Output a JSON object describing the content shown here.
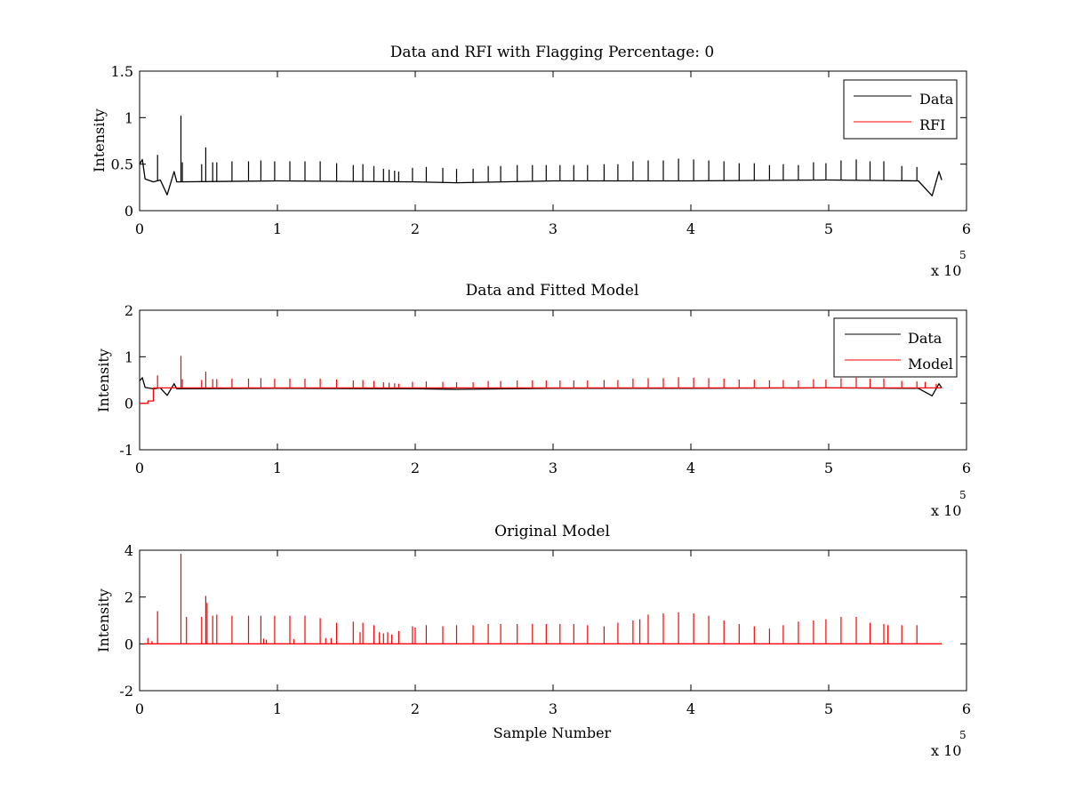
{
  "figure": {
    "background": "#ffffff",
    "x_scale_note": {
      "prefix": "x 10",
      "exponent": "5"
    }
  },
  "colors": {
    "data": "#000000",
    "rfi": "#ff0000",
    "model": "#ff0000"
  },
  "chart_data": [
    {
      "type": "line",
      "title": "Data and RFI with Flagging Percentage: 0",
      "xlabel": "",
      "ylabel": "Intensity",
      "xlim": [
        0,
        6
      ],
      "ylim": [
        0,
        1.5
      ],
      "x_ticks": [
        0,
        1,
        2,
        3,
        4,
        5,
        6
      ],
      "y_ticks": [
        0,
        0.5,
        1,
        1.5
      ],
      "y_tick_labels": [
        "0",
        "0.5",
        "1",
        "1.5"
      ],
      "grid": false,
      "legend": {
        "position": "top-right",
        "entries": [
          "Data",
          "RFI"
        ]
      },
      "series": [
        {
          "name": "Data",
          "color": "#000000",
          "baseline_points": [
            [
              0,
              0.5
            ],
            [
              0.02,
              0.55
            ],
            [
              0.04,
              0.34
            ],
            [
              0.1,
              0.31
            ],
            [
              0.15,
              0.33
            ],
            [
              0.2,
              0.17
            ],
            [
              0.25,
              0.42
            ],
            [
              0.27,
              0.31
            ],
            [
              1,
              0.32
            ],
            [
              2,
              0.31
            ],
            [
              2.3,
              0.3
            ],
            [
              3,
              0.32
            ],
            [
              4,
              0.32
            ],
            [
              5,
              0.33
            ],
            [
              5.65,
              0.32
            ],
            [
              5.75,
              0.16
            ],
            [
              5.8,
              0.42
            ],
            [
              5.82,
              0.33
            ]
          ],
          "spikes": [
            [
              0.13,
              0.6
            ],
            [
              0.3,
              1.02
            ],
            [
              0.31,
              0.52
            ],
            [
              0.45,
              0.5
            ],
            [
              0.48,
              0.68
            ],
            [
              0.53,
              0.52
            ],
            [
              0.56,
              0.52
            ],
            [
              0.67,
              0.53
            ],
            [
              0.79,
              0.53
            ],
            [
              0.88,
              0.54
            ],
            [
              0.98,
              0.53
            ],
            [
              1.09,
              0.53
            ],
            [
              1.2,
              0.53
            ],
            [
              1.31,
              0.53
            ],
            [
              1.43,
              0.51
            ],
            [
              1.55,
              0.49
            ],
            [
              1.62,
              0.5
            ],
            [
              1.7,
              0.48
            ],
            [
              1.77,
              0.45
            ],
            [
              1.81,
              0.44
            ],
            [
              1.85,
              0.43
            ],
            [
              1.88,
              0.42
            ],
            [
              1.98,
              0.46
            ],
            [
              2.08,
              0.47
            ],
            [
              2.2,
              0.46
            ],
            [
              2.3,
              0.45
            ],
            [
              2.42,
              0.45
            ],
            [
              2.53,
              0.48
            ],
            [
              2.62,
              0.48
            ],
            [
              2.74,
              0.49
            ],
            [
              2.85,
              0.49
            ],
            [
              2.95,
              0.49
            ],
            [
              3.05,
              0.49
            ],
            [
              3.15,
              0.49
            ],
            [
              3.25,
              0.49
            ],
            [
              3.37,
              0.5
            ],
            [
              3.47,
              0.5
            ],
            [
              3.58,
              0.53
            ],
            [
              3.69,
              0.54
            ],
            [
              3.8,
              0.54
            ],
            [
              3.91,
              0.56
            ],
            [
              4.02,
              0.55
            ],
            [
              4.13,
              0.54
            ],
            [
              4.24,
              0.53
            ],
            [
              4.35,
              0.51
            ],
            [
              4.46,
              0.51
            ],
            [
              4.57,
              0.49
            ],
            [
              4.67,
              0.5
            ],
            [
              4.78,
              0.49
            ],
            [
              4.89,
              0.52
            ],
            [
              4.98,
              0.51
            ],
            [
              5.09,
              0.54
            ],
            [
              5.2,
              0.55
            ],
            [
              5.3,
              0.53
            ],
            [
              5.4,
              0.53
            ],
            [
              5.53,
              0.48
            ],
            [
              5.64,
              0.47
            ]
          ]
        },
        {
          "name": "RFI",
          "color": "#ff0000",
          "values": []
        }
      ]
    },
    {
      "type": "line",
      "title": "Data and Fitted Model",
      "xlabel": "",
      "ylabel": "Intensity",
      "xlim": [
        0,
        6
      ],
      "ylim": [
        -1,
        2
      ],
      "x_ticks": [
        0,
        1,
        2,
        3,
        4,
        5,
        6
      ],
      "y_ticks": [
        -1,
        0,
        1,
        2
      ],
      "y_tick_labels": [
        "-1",
        "0",
        "1",
        "2"
      ],
      "grid": false,
      "legend": {
        "position": "top-right",
        "entries": [
          "Data",
          "Model"
        ]
      },
      "series": [
        {
          "name": "Data",
          "color": "#000000",
          "baseline_points": [
            [
              0,
              0.48
            ],
            [
              0.02,
              0.55
            ],
            [
              0.04,
              0.34
            ],
            [
              0.1,
              0.31
            ],
            [
              0.15,
              0.33
            ],
            [
              0.2,
              0.17
            ],
            [
              0.25,
              0.42
            ],
            [
              0.27,
              0.31
            ],
            [
              1,
              0.32
            ],
            [
              2,
              0.31
            ],
            [
              2.3,
              0.3
            ],
            [
              3,
              0.32
            ],
            [
              4,
              0.32
            ],
            [
              5,
              0.33
            ],
            [
              5.65,
              0.32
            ],
            [
              5.75,
              0.16
            ],
            [
              5.8,
              0.42
            ],
            [
              5.82,
              0.33
            ]
          ],
          "spikes": []
        },
        {
          "name": "Model",
          "color": "#ff0000",
          "baseline_points": [
            [
              0,
              0.0
            ],
            [
              0.06,
              0.0
            ],
            [
              0.06,
              0.05
            ],
            [
              0.1,
              0.05
            ],
            [
              0.1,
              0.33
            ],
            [
              5.82,
              0.33
            ]
          ],
          "spikes": [
            [
              0.13,
              0.6
            ],
            [
              0.3,
              1.02
            ],
            [
              0.31,
              0.52
            ],
            [
              0.45,
              0.5
            ],
            [
              0.48,
              0.68
            ],
            [
              0.53,
              0.52
            ],
            [
              0.56,
              0.52
            ],
            [
              0.67,
              0.53
            ],
            [
              0.79,
              0.53
            ],
            [
              0.88,
              0.54
            ],
            [
              0.98,
              0.53
            ],
            [
              1.09,
              0.53
            ],
            [
              1.2,
              0.53
            ],
            [
              1.31,
              0.53
            ],
            [
              1.43,
              0.51
            ],
            [
              1.55,
              0.49
            ],
            [
              1.62,
              0.5
            ],
            [
              1.7,
              0.48
            ],
            [
              1.77,
              0.45
            ],
            [
              1.81,
              0.44
            ],
            [
              1.85,
              0.43
            ],
            [
              1.88,
              0.42
            ],
            [
              1.98,
              0.46
            ],
            [
              2.08,
              0.47
            ],
            [
              2.2,
              0.46
            ],
            [
              2.3,
              0.45
            ],
            [
              2.42,
              0.45
            ],
            [
              2.53,
              0.48
            ],
            [
              2.62,
              0.48
            ],
            [
              2.74,
              0.49
            ],
            [
              2.85,
              0.49
            ],
            [
              2.95,
              0.49
            ],
            [
              3.05,
              0.49
            ],
            [
              3.15,
              0.49
            ],
            [
              3.25,
              0.49
            ],
            [
              3.37,
              0.5
            ],
            [
              3.47,
              0.5
            ],
            [
              3.58,
              0.53
            ],
            [
              3.69,
              0.54
            ],
            [
              3.8,
              0.54
            ],
            [
              3.91,
              0.56
            ],
            [
              4.02,
              0.55
            ],
            [
              4.13,
              0.54
            ],
            [
              4.24,
              0.53
            ],
            [
              4.35,
              0.51
            ],
            [
              4.46,
              0.51
            ],
            [
              4.57,
              0.49
            ],
            [
              4.67,
              0.5
            ],
            [
              4.78,
              0.49
            ],
            [
              4.89,
              0.52
            ],
            [
              4.98,
              0.51
            ],
            [
              5.09,
              0.54
            ],
            [
              5.2,
              0.55
            ],
            [
              5.3,
              0.53
            ],
            [
              5.4,
              0.53
            ],
            [
              5.53,
              0.48
            ],
            [
              5.64,
              0.47
            ],
            [
              5.7,
              0.46
            ],
            [
              5.78,
              0.42
            ]
          ]
        }
      ]
    },
    {
      "type": "line",
      "title": "Original Model",
      "xlabel": "Sample Number",
      "ylabel": "Intensity",
      "xlim": [
        0,
        6
      ],
      "ylim": [
        -2,
        4
      ],
      "x_ticks": [
        0,
        1,
        2,
        3,
        4,
        5,
        6
      ],
      "y_ticks": [
        -2,
        0,
        2,
        4
      ],
      "y_tick_labels": [
        "-2",
        "0",
        "2",
        "4"
      ],
      "grid": false,
      "legend": null,
      "series": [
        {
          "color": "#ff0000",
          "baseline_points": [
            [
              0.03,
              0.0
            ],
            [
              5.82,
              0.0
            ]
          ],
          "spikes": [
            [
              0.06,
              0.25
            ],
            [
              0.09,
              0.12
            ],
            [
              0.13,
              1.4
            ],
            [
              0.3,
              3.85
            ],
            [
              0.34,
              1.15
            ],
            [
              0.45,
              1.15
            ],
            [
              0.48,
              2.05
            ],
            [
              0.49,
              1.75
            ],
            [
              0.53,
              1.2
            ],
            [
              0.56,
              1.25
            ],
            [
              0.67,
              1.2
            ],
            [
              0.79,
              1.2
            ],
            [
              0.88,
              1.2
            ],
            [
              0.9,
              0.22
            ],
            [
              0.92,
              0.18
            ],
            [
              0.98,
              1.2
            ],
            [
              1.09,
              1.2
            ],
            [
              1.12,
              0.2
            ],
            [
              1.2,
              1.2
            ],
            [
              1.31,
              1.1
            ],
            [
              1.35,
              0.25
            ],
            [
              1.39,
              0.25
            ],
            [
              1.43,
              0.9
            ],
            [
              1.55,
              0.95
            ],
            [
              1.6,
              0.5
            ],
            [
              1.62,
              0.9
            ],
            [
              1.7,
              0.8
            ],
            [
              1.74,
              0.5
            ],
            [
              1.77,
              0.45
            ],
            [
              1.8,
              0.5
            ],
            [
              1.83,
              0.4
            ],
            [
              1.88,
              0.55
            ],
            [
              1.98,
              0.75
            ],
            [
              2.0,
              0.7
            ],
            [
              2.08,
              0.8
            ],
            [
              2.2,
              0.75
            ],
            [
              2.3,
              0.8
            ],
            [
              2.42,
              0.8
            ],
            [
              2.53,
              0.85
            ],
            [
              2.62,
              0.85
            ],
            [
              2.74,
              0.85
            ],
            [
              2.85,
              0.85
            ],
            [
              2.95,
              0.85
            ],
            [
              3.05,
              0.85
            ],
            [
              3.15,
              0.85
            ],
            [
              3.25,
              0.8
            ],
            [
              3.37,
              0.75
            ],
            [
              3.47,
              0.9
            ],
            [
              3.58,
              1.0
            ],
            [
              3.63,
              1.05
            ],
            [
              3.69,
              1.25
            ],
            [
              3.8,
              1.3
            ],
            [
              3.91,
              1.35
            ],
            [
              4.02,
              1.3
            ],
            [
              4.13,
              1.2
            ],
            [
              4.24,
              1.0
            ],
            [
              4.35,
              0.85
            ],
            [
              4.46,
              0.75
            ],
            [
              4.57,
              0.65
            ],
            [
              4.67,
              0.8
            ],
            [
              4.78,
              0.95
            ],
            [
              4.89,
              1.0
            ],
            [
              4.98,
              1.05
            ],
            [
              5.09,
              1.15
            ],
            [
              5.2,
              1.15
            ],
            [
              5.3,
              0.9
            ],
            [
              5.4,
              0.85
            ],
            [
              5.43,
              0.8
            ],
            [
              5.53,
              0.8
            ],
            [
              5.64,
              0.8
            ]
          ]
        }
      ]
    }
  ]
}
